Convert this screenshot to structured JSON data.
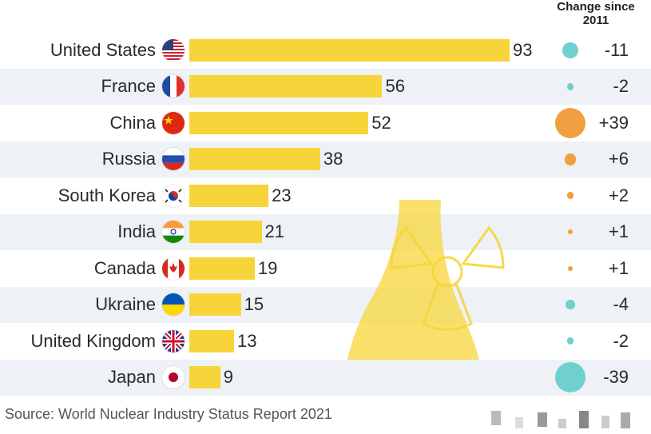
{
  "chart_data": {
    "type": "bar",
    "orientation": "horizontal",
    "categories": [
      "United States",
      "France",
      "China",
      "Russia",
      "South Korea",
      "India",
      "Canada",
      "Ukraine",
      "United Kingdom",
      "Japan"
    ],
    "values": [
      93,
      56,
      52,
      38,
      23,
      21,
      19,
      15,
      13,
      9
    ],
    "change_header": "Change since 2011",
    "changes": [
      -11,
      -2,
      39,
      6,
      2,
      1,
      1,
      -4,
      -2,
      -39
    ],
    "change_labels": [
      "-11",
      "-2",
      "+39",
      "+6",
      "+2",
      "+1",
      "+1",
      "-4",
      "-2",
      "-39"
    ],
    "source": "Source: World Nuclear Industry Status Report 2021",
    "colors": {
      "bar": "#f7d53a",
      "positive": "#f0a040",
      "negative": "#6fd0cf",
      "row_alt": "#eef1f5"
    },
    "flag_icons": [
      "us-flag-icon",
      "france-flag-icon",
      "china-flag-icon",
      "russia-flag-icon",
      "south-korea-flag-icon",
      "india-flag-icon",
      "canada-flag-icon",
      "ukraine-flag-icon",
      "uk-flag-icon",
      "japan-flag-icon"
    ]
  }
}
